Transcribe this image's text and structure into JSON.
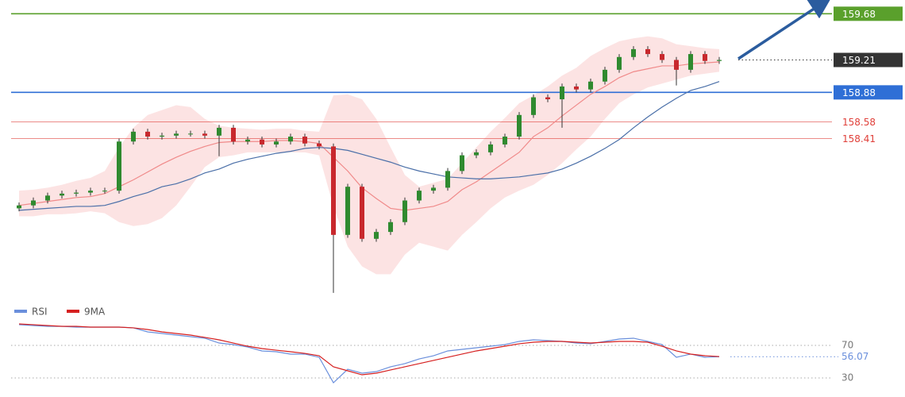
{
  "chart_data": [
    {
      "type": "candlestick",
      "open": [
        157.7,
        157.73,
        157.78,
        157.83,
        157.85,
        157.86,
        157.88,
        157.88,
        158.38,
        158.48,
        158.43,
        158.44,
        158.46,
        158.46,
        158.44,
        158.52,
        158.38,
        158.4,
        158.35,
        158.38,
        158.43,
        158.36,
        158.33,
        157.43,
        157.92,
        157.39,
        157.46,
        157.56,
        157.78,
        157.88,
        157.91,
        158.08,
        158.24,
        158.27,
        158.35,
        158.43,
        158.65,
        158.83,
        158.81,
        158.94,
        158.91,
        158.99,
        159.11,
        159.24,
        159.32,
        159.27,
        159.21,
        159.11,
        159.27,
        159.2
      ],
      "high": [
        157.76,
        157.81,
        157.86,
        157.88,
        157.89,
        157.91,
        157.91,
        158.41,
        158.51,
        158.51,
        158.47,
        158.49,
        158.49,
        158.49,
        158.55,
        158.55,
        158.43,
        158.43,
        158.41,
        158.46,
        158.46,
        158.39,
        158.36,
        157.95,
        157.95,
        157.49,
        157.59,
        157.81,
        157.91,
        157.94,
        158.11,
        158.27,
        158.3,
        158.38,
        158.46,
        158.68,
        158.86,
        158.86,
        158.97,
        158.97,
        159.02,
        159.14,
        159.27,
        159.35,
        159.35,
        159.3,
        159.24,
        159.3,
        159.3,
        159.24
      ],
      "low": [
        157.67,
        157.7,
        157.75,
        157.8,
        157.82,
        157.83,
        157.85,
        157.85,
        158.35,
        158.4,
        158.4,
        158.41,
        158.43,
        158.41,
        158.23,
        158.35,
        158.35,
        158.32,
        158.32,
        158.35,
        158.33,
        158.3,
        156.84,
        157.4,
        157.36,
        157.36,
        157.43,
        157.53,
        157.75,
        157.85,
        157.88,
        158.05,
        158.21,
        158.24,
        158.32,
        158.4,
        158.62,
        158.78,
        158.52,
        158.88,
        158.88,
        158.96,
        159.08,
        159.21,
        159.24,
        159.18,
        158.95,
        159.08,
        159.17,
        159.17
      ],
      "close": [
        157.73,
        157.78,
        157.83,
        157.85,
        157.86,
        157.88,
        157.88,
        158.38,
        158.48,
        158.43,
        158.44,
        158.46,
        158.46,
        158.44,
        158.52,
        158.38,
        158.4,
        158.35,
        158.38,
        158.43,
        158.36,
        158.33,
        157.43,
        157.92,
        157.39,
        157.46,
        157.56,
        157.78,
        157.88,
        157.91,
        158.08,
        158.24,
        158.27,
        158.35,
        158.43,
        158.65,
        158.83,
        158.81,
        158.94,
        158.91,
        158.99,
        159.11,
        159.24,
        159.32,
        159.27,
        159.21,
        159.11,
        159.27,
        159.2,
        159.21
      ],
      "color_up": "#2f8a2f",
      "color_down": "#c8282d",
      "band": {
        "color": "#fbdcdc",
        "upper": [
          157.88,
          157.89,
          157.91,
          157.94,
          157.98,
          158.01,
          158.08,
          158.32,
          158.52,
          158.65,
          158.7,
          158.75,
          158.73,
          158.61,
          158.54,
          158.52,
          158.51,
          158.5,
          158.51,
          158.51,
          158.49,
          158.48,
          158.85,
          158.86,
          158.81,
          158.61,
          158.32,
          158.04,
          157.92,
          157.96,
          158.0,
          158.16,
          158.32,
          158.48,
          158.62,
          158.77,
          158.85,
          158.94,
          159.05,
          159.13,
          159.25,
          159.33,
          159.4,
          159.43,
          159.45,
          159.43,
          159.37,
          159.35,
          159.33,
          159.32
        ],
        "lower": [
          157.62,
          157.62,
          157.64,
          157.64,
          157.65,
          157.67,
          157.65,
          157.56,
          157.52,
          157.54,
          157.6,
          157.73,
          157.92,
          158.12,
          158.22,
          158.24,
          158.27,
          158.27,
          158.27,
          158.27,
          158.27,
          158.24,
          157.72,
          157.31,
          157.11,
          157.03,
          157.03,
          157.23,
          157.35,
          157.31,
          157.27,
          157.43,
          157.56,
          157.7,
          157.81,
          157.88,
          157.94,
          158.04,
          158.16,
          158.3,
          158.43,
          158.61,
          158.77,
          158.86,
          158.93,
          158.97,
          159.01,
          159.05,
          159.07,
          159.09
        ]
      },
      "overlays": [
        {
          "color": "#f08a8a",
          "values": [
            157.73,
            157.75,
            157.77,
            157.79,
            157.81,
            157.82,
            157.85,
            157.92,
            157.99,
            158.07,
            158.15,
            158.22,
            158.28,
            158.33,
            158.37,
            158.38,
            158.38,
            158.38,
            158.39,
            158.39,
            158.38,
            158.36,
            158.22,
            158.08,
            157.91,
            157.8,
            157.7,
            157.68,
            157.7,
            157.72,
            157.77,
            157.89,
            157.97,
            158.07,
            158.17,
            158.27,
            158.43,
            158.52,
            158.64,
            158.75,
            158.86,
            158.94,
            159.03,
            159.09,
            159.12,
            159.15,
            159.15,
            159.17,
            159.18,
            159.19
          ]
        },
        {
          "color": "#4a6fa8",
          "values": [
            157.68,
            157.69,
            157.7,
            157.71,
            157.72,
            157.72,
            157.73,
            157.77,
            157.82,
            157.86,
            157.92,
            157.95,
            158.0,
            158.06,
            158.1,
            158.16,
            158.2,
            158.23,
            158.26,
            158.28,
            158.31,
            158.32,
            158.31,
            158.29,
            158.25,
            158.21,
            158.17,
            158.12,
            158.08,
            158.05,
            158.02,
            158.01,
            158.0,
            158.0,
            158.01,
            158.02,
            158.04,
            158.06,
            158.1,
            158.16,
            158.23,
            158.31,
            158.4,
            158.52,
            158.63,
            158.73,
            158.82,
            158.9,
            158.94,
            158.99
          ]
        }
      ],
      "levels": [
        {
          "value": 159.68,
          "color": "#5aa02c",
          "box": true,
          "dotted": false
        },
        {
          "value": 159.21,
          "color": "#333333",
          "box": true,
          "dotted": true
        },
        {
          "value": 158.88,
          "color": "#2f6fd6",
          "box": true,
          "dotted": false
        },
        {
          "value": 158.58,
          "color": "#e0403a",
          "box": false,
          "dotted": false
        },
        {
          "value": 158.41,
          "color": "#e0403a",
          "box": false,
          "dotted": false
        }
      ],
      "ylim": [
        156.75,
        159.82
      ]
    },
    {
      "type": "line",
      "series": [
        {
          "name": "RSI",
          "color": "#6a8fdc",
          "values": [
            95.4,
            94.4,
            93.4,
            93.4,
            92.4,
            92.4,
            92.4,
            92.4,
            91.5,
            86.6,
            84.6,
            82.7,
            80.7,
            78.8,
            72.9,
            71.0,
            68.0,
            63.2,
            62.2,
            59.3,
            59.3,
            55.4,
            24.1,
            40.7,
            35.9,
            37.8,
            43.7,
            47.6,
            53.4,
            57.3,
            63.2,
            65.1,
            67.1,
            69.0,
            71.0,
            74.9,
            76.8,
            75.9,
            74.9,
            72.9,
            72.0,
            74.9,
            77.8,
            78.8,
            74.9,
            71.0,
            55.4,
            59.3,
            55.4,
            56.07
          ]
        },
        {
          "name": "9MA",
          "color": "#d62020",
          "values": [
            96.3,
            95.4,
            94.4,
            93.4,
            93.4,
            92.4,
            92.4,
            92.4,
            91.5,
            89.5,
            86.6,
            84.6,
            82.7,
            79.8,
            76.8,
            72.9,
            69.0,
            66.1,
            64.1,
            62.2,
            60.2,
            57.3,
            43.7,
            38.8,
            33.9,
            35.9,
            39.8,
            43.7,
            47.6,
            51.5,
            55.4,
            59.3,
            63.2,
            66.1,
            69.0,
            72.0,
            73.9,
            74.9,
            74.9,
            73.9,
            72.9,
            73.9,
            74.9,
            74.9,
            73.9,
            69.0,
            63.2,
            59.3,
            57.3,
            56.3
          ]
        }
      ],
      "ylim": [
        11.5,
        109
      ],
      "yticks": [
        70,
        30
      ]
    }
  ]
}
